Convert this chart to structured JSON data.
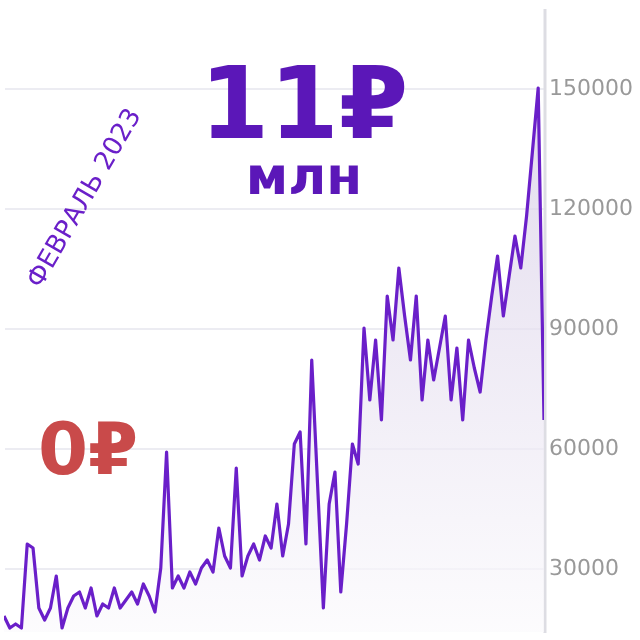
{
  "chart_data": {
    "type": "area",
    "annotations": [
      "11₽",
      "млн",
      "0₽",
      "ФЕВРАЛЬ 2023"
    ],
    "categories": [
      null,
      null,
      null,
      null,
      null,
      null,
      null,
      null,
      null,
      null,
      null,
      null,
      null,
      null,
      null,
      null,
      null,
      null,
      null,
      null,
      null,
      null,
      null,
      null,
      null,
      null,
      null,
      null,
      null,
      null,
      null,
      null,
      null,
      null,
      null,
      null,
      null,
      null,
      null,
      null,
      null,
      null,
      null,
      null,
      null,
      null,
      null,
      null,
      null,
      null,
      null,
      null,
      null,
      null,
      null,
      null,
      null,
      null,
      null,
      null,
      null,
      null,
      null,
      null,
      null,
      null,
      null,
      null,
      null,
      null,
      null,
      null,
      null,
      null,
      null,
      null,
      null,
      null,
      null,
      null,
      null,
      null,
      null,
      null,
      null,
      null,
      null,
      null,
      null,
      null,
      null,
      null,
      null,
      null
    ],
    "series": [
      {
        "color": "#6a1fc9",
        "values": [
          18000,
          15000,
          16000,
          15000,
          36000,
          35000,
          20000,
          17000,
          20000,
          28000,
          15000,
          20000,
          23000,
          24000,
          20000,
          25000,
          18000,
          21000,
          20000,
          25000,
          20000,
          22000,
          24000,
          21000,
          26000,
          23000,
          19000,
          30000,
          59000,
          25000,
          28000,
          25000,
          29000,
          26000,
          30000,
          32000,
          29000,
          40000,
          33000,
          30000,
          55000,
          28000,
          33000,
          36000,
          32000,
          38000,
          35000,
          46000,
          33000,
          41000,
          61000,
          64000,
          36000,
          82000,
          51000,
          20000,
          46000,
          54000,
          24000,
          41000,
          61000,
          56000,
          90000,
          72000,
          87000,
          67000,
          98000,
          87000,
          105000,
          93000,
          82000,
          98000,
          72000,
          87000,
          77000,
          85000,
          93000,
          72000,
          85000,
          67000,
          87000,
          80000,
          74000,
          87000,
          98000,
          108000,
          93000,
          103000,
          113000,
          105000,
          118000,
          134000,
          150000,
          67000
        ]
      }
    ],
    "ylim": [
      14000,
      170000
    ],
    "yticks": [
      30000,
      60000,
      90000,
      120000,
      150000
    ],
    "grid": "y"
  }
}
